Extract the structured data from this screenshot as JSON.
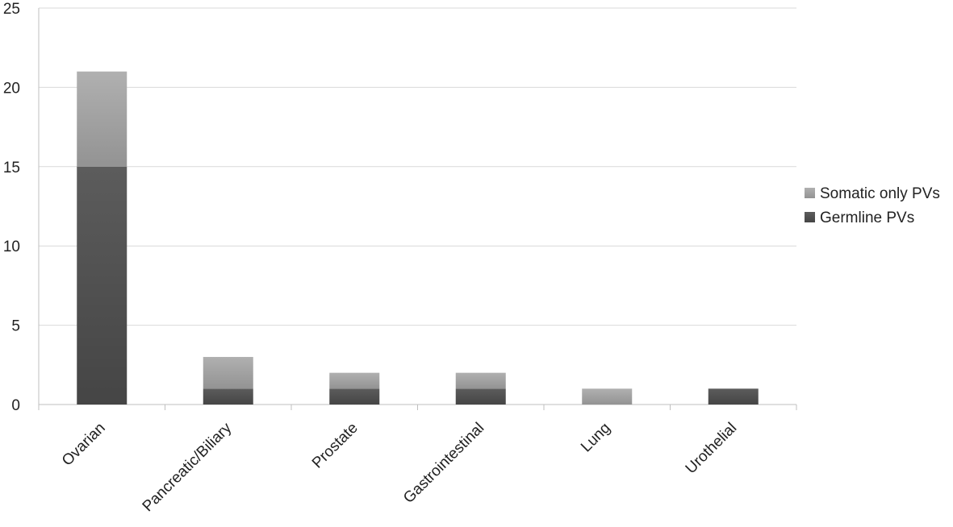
{
  "chart_data": {
    "type": "bar",
    "stacked": true,
    "categories": [
      "Ovarian",
      "Pancreatic/Biliary",
      "Prostate",
      "Gastrointestinal",
      "Lung",
      "Urothelial"
    ],
    "series": [
      {
        "name": "Germline PVs",
        "values": [
          15,
          1,
          1,
          1,
          0,
          1
        ],
        "color": "#4d4d4d"
      },
      {
        "name": "Somatic only PVs",
        "values": [
          6,
          2,
          1,
          1,
          1,
          0
        ],
        "color": "#a8a8a8"
      }
    ],
    "ylim": [
      0,
      25
    ],
    "yticks": [
      0,
      5,
      10,
      15,
      20,
      25
    ],
    "grid": true,
    "legend": "right",
    "title": "",
    "xlabel": "",
    "ylabel": ""
  }
}
